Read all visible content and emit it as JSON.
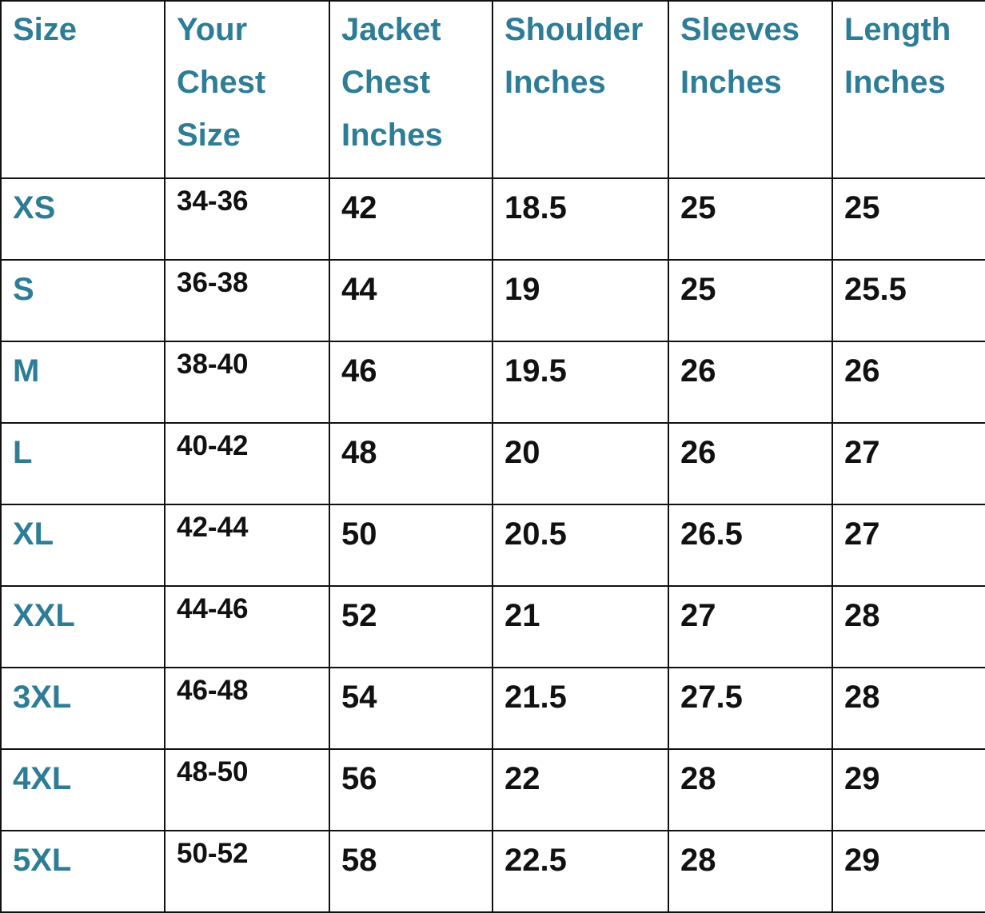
{
  "colors": {
    "header_text": "#2E7D96",
    "body_text": "#111111",
    "border": "#111111"
  },
  "table": {
    "headers": [
      "Size",
      "Your Chest Size",
      "Jacket Chest Inches",
      "Shoulder Inches",
      "Sleeves Inches",
      "Length Inches"
    ],
    "rows": [
      [
        "XS",
        "34-36",
        "42",
        "18.5",
        "25",
        "25"
      ],
      [
        "S",
        "36-38",
        "44",
        "19",
        "25",
        "25.5"
      ],
      [
        "M",
        "38-40",
        "46",
        "19.5",
        "26",
        "26"
      ],
      [
        "L",
        "40-42",
        "48",
        "20",
        "26",
        "27"
      ],
      [
        "XL",
        "42-44",
        "50",
        "20.5",
        "26.5",
        "27"
      ],
      [
        "XXL",
        "44-46",
        "52",
        "21",
        "27",
        "28"
      ],
      [
        "3XL",
        "46-48",
        "54",
        "21.5",
        "27.5",
        "28"
      ],
      [
        "4XL",
        "48-50",
        "56",
        "22",
        "28",
        "29"
      ],
      [
        "5XL",
        "50-52",
        "58",
        "22.5",
        "28",
        "29"
      ]
    ]
  }
}
